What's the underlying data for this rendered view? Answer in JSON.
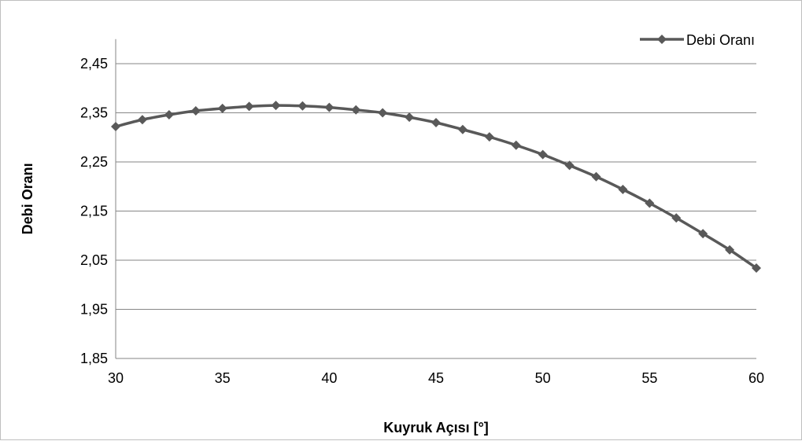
{
  "chart_data": {
    "type": "line",
    "title": "",
    "xlabel": "Kuyruk Açısı [°]",
    "ylabel": "Debi Oranı",
    "xlim": [
      30,
      60
    ],
    "ylim": [
      1.85,
      2.5
    ],
    "x_ticks": [
      30,
      35,
      40,
      45,
      50,
      55,
      60
    ],
    "y_ticks": [
      1.85,
      1.95,
      2.05,
      2.15,
      2.25,
      2.35,
      2.45
    ],
    "x_tick_labels": [
      "30",
      "35",
      "40",
      "45",
      "50",
      "55",
      "60"
    ],
    "y_tick_labels": [
      "1,85",
      "1,95",
      "2,05",
      "2,15",
      "2,25",
      "2,35",
      "2,45"
    ],
    "grid": "horizontal",
    "legend_position": "top-right",
    "series": [
      {
        "name": "Debi Oranı",
        "color": "#595959",
        "marker": "diamond",
        "x": [
          30,
          31.25,
          32.5,
          33.75,
          35,
          36.25,
          37.5,
          38.75,
          40,
          41.25,
          42.5,
          43.75,
          45,
          46.25,
          47.5,
          48.75,
          50,
          51.25,
          52.5,
          53.75,
          55,
          56.25,
          57.5,
          58.75,
          60
        ],
        "values": [
          2.322,
          2.336,
          2.346,
          2.354,
          2.359,
          2.363,
          2.365,
          2.364,
          2.361,
          2.356,
          2.35,
          2.341,
          2.33,
          2.316,
          2.301,
          2.284,
          2.265,
          2.243,
          2.22,
          2.194,
          2.166,
          2.136,
          2.104,
          2.071,
          2.034
        ]
      }
    ]
  }
}
